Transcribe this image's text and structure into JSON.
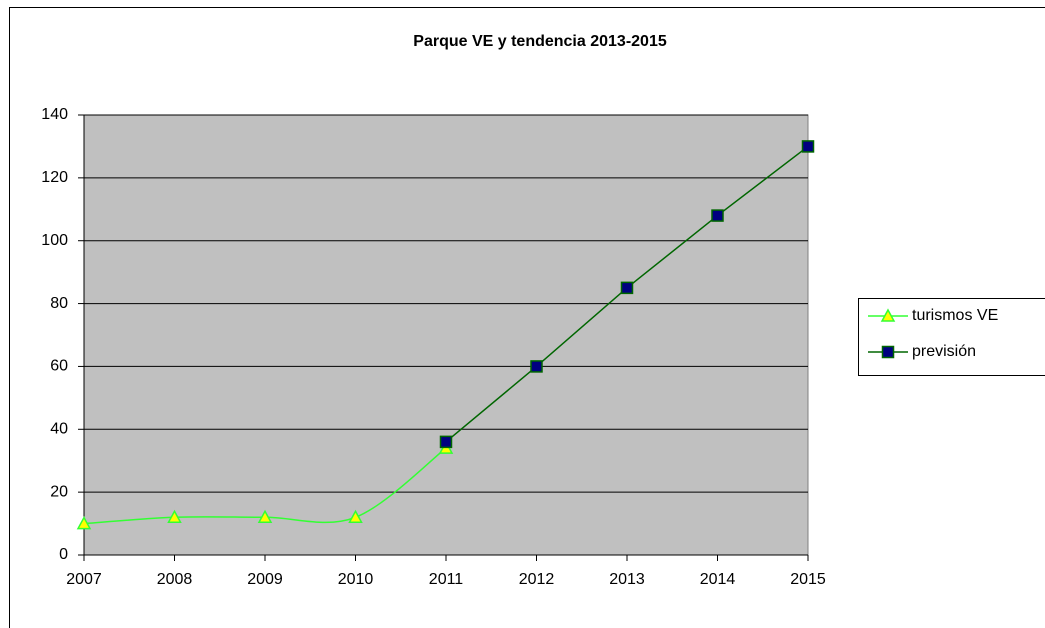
{
  "chart_data": {
    "type": "line",
    "title": "Parque VE y tendencia 2013-2015",
    "categories": [
      "2007",
      "2008",
      "2009",
      "2010",
      "2011",
      "2012",
      "2013",
      "2014",
      "2015"
    ],
    "series": [
      {
        "name": "turismos VE",
        "color": "#33ff33",
        "marker": "triangle",
        "marker_fill": "#ffff00",
        "smooth": true,
        "values": [
          10,
          12,
          12,
          12,
          34,
          null,
          null,
          null,
          null
        ]
      },
      {
        "name": "previsión",
        "color": "#006600",
        "marker": "square",
        "marker_fill": "#000080",
        "smooth": false,
        "values": [
          null,
          null,
          null,
          null,
          36,
          60,
          85,
          108,
          130
        ]
      }
    ],
    "ylim": [
      0,
      140
    ],
    "yticks": [
      0,
      20,
      40,
      60,
      80,
      100,
      120,
      140
    ],
    "grid": true,
    "legend": "right"
  }
}
